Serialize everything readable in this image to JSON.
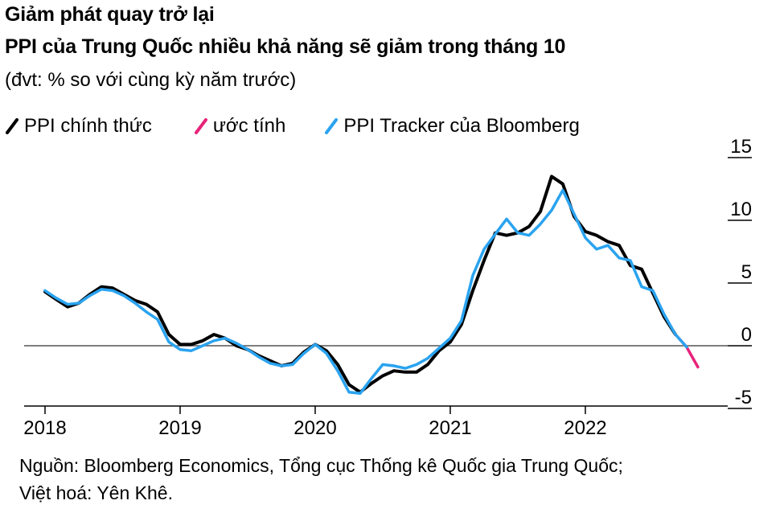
{
  "header": {
    "title": "Giảm phát quay trở lại",
    "subtitle": "PPI của Trung Quốc nhiều khả năng sẽ giảm trong tháng 10",
    "unit": "(đvt: % so với cùng kỳ năm trước)"
  },
  "legend": [
    {
      "label": "PPI chính thức",
      "color": "#000000"
    },
    {
      "label": "ước tính",
      "color": "#e8237a"
    },
    {
      "label": "PPI Tracker của Bloomberg",
      "color": "#2aa3f0"
    }
  ],
  "footer": {
    "source_line1": "Nguồn: Bloomberg Economics, Tổng cục Thống kê Quốc gia Trung Quốc;",
    "source_line2": "Việt hoá: Yên Khê."
  },
  "chart_data": {
    "type": "line",
    "title": "PPI của Trung Quốc nhiều khả năng sẽ giảm trong tháng 10",
    "ylabel": "% so với cùng kỳ năm trước",
    "ylim": [
      -5,
      15
    ],
    "yticks": [
      15,
      10,
      5,
      0,
      -5
    ],
    "xlim": [
      2018.0,
      2022.917
    ],
    "xticks": [
      2018,
      2019,
      2020,
      2021,
      2022
    ],
    "xtick_labels": [
      "2018",
      "2019",
      "2020",
      "2021",
      "2022"
    ],
    "series": [
      {
        "name": "PPI chính thức",
        "color": "#000000",
        "x": [
          2018.0,
          2018.083,
          2018.167,
          2018.25,
          2018.333,
          2018.417,
          2018.5,
          2018.583,
          2018.667,
          2018.75,
          2018.833,
          2018.917,
          2019.0,
          2019.083,
          2019.167,
          2019.25,
          2019.333,
          2019.417,
          2019.5,
          2019.583,
          2019.667,
          2019.75,
          2019.833,
          2019.917,
          2020.0,
          2020.083,
          2020.167,
          2020.25,
          2020.333,
          2020.417,
          2020.5,
          2020.583,
          2020.667,
          2020.75,
          2020.833,
          2020.917,
          2021.0,
          2021.083,
          2021.167,
          2021.25,
          2021.333,
          2021.417,
          2021.5,
          2021.583,
          2021.667,
          2021.75,
          2021.833,
          2021.917,
          2022.0,
          2022.083,
          2022.167,
          2022.25,
          2022.333,
          2022.417,
          2022.5,
          2022.583,
          2022.667
        ],
        "values": [
          4.3,
          3.7,
          3.1,
          3.4,
          4.1,
          4.7,
          4.6,
          4.1,
          3.6,
          3.3,
          2.7,
          0.9,
          0.1,
          0.1,
          0.4,
          0.9,
          0.6,
          0.0,
          -0.3,
          -0.8,
          -1.2,
          -1.6,
          -1.4,
          -0.5,
          0.1,
          -0.4,
          -1.5,
          -3.1,
          -3.7,
          -3.0,
          -2.4,
          -2.0,
          -2.1,
          -2.1,
          -1.5,
          -0.4,
          0.3,
          1.7,
          4.4,
          6.8,
          9.0,
          8.8,
          9.0,
          9.5,
          10.7,
          13.5,
          12.9,
          10.3,
          9.1,
          8.8,
          8.3,
          8.0,
          6.4,
          6.1,
          4.2,
          2.3,
          0.9
        ]
      },
      {
        "name": "ước tính",
        "color": "#e8237a",
        "x": [
          2022.667,
          2022.75,
          2022.833
        ],
        "values": [
          0.9,
          -0.1,
          -1.7
        ]
      },
      {
        "name": "PPI Tracker của Bloomberg",
        "color": "#2aa3f0",
        "x": [
          2018.0,
          2018.083,
          2018.167,
          2018.25,
          2018.333,
          2018.417,
          2018.5,
          2018.583,
          2018.667,
          2018.75,
          2018.833,
          2018.917,
          2019.0,
          2019.083,
          2019.167,
          2019.25,
          2019.333,
          2019.417,
          2019.5,
          2019.583,
          2019.667,
          2019.75,
          2019.833,
          2019.917,
          2020.0,
          2020.083,
          2020.167,
          2020.25,
          2020.333,
          2020.417,
          2020.5,
          2020.583,
          2020.667,
          2020.75,
          2020.833,
          2020.917,
          2021.0,
          2021.083,
          2021.167,
          2021.25,
          2021.333,
          2021.417,
          2021.5,
          2021.583,
          2021.667,
          2021.75,
          2021.833,
          2021.917,
          2022.0,
          2022.083,
          2022.167,
          2022.25,
          2022.333,
          2022.417,
          2022.5,
          2022.583,
          2022.667,
          2022.75
        ],
        "values": [
          4.4,
          3.8,
          3.3,
          3.4,
          4.0,
          4.5,
          4.4,
          4.0,
          3.4,
          2.7,
          2.1,
          0.3,
          -0.3,
          -0.4,
          0.0,
          0.4,
          0.6,
          0.2,
          -0.3,
          -0.9,
          -1.4,
          -1.6,
          -1.5,
          -0.6,
          0.1,
          -0.6,
          -2.0,
          -3.7,
          -3.8,
          -2.6,
          -1.5,
          -1.6,
          -1.8,
          -1.5,
          -1.0,
          -0.2,
          0.6,
          2.0,
          5.6,
          7.7,
          8.9,
          10.1,
          9.0,
          8.8,
          9.7,
          10.8,
          12.4,
          10.5,
          8.6,
          7.7,
          8.0,
          7.0,
          6.8,
          4.7,
          4.4,
          2.5,
          0.9,
          -0.1
        ]
      }
    ]
  }
}
